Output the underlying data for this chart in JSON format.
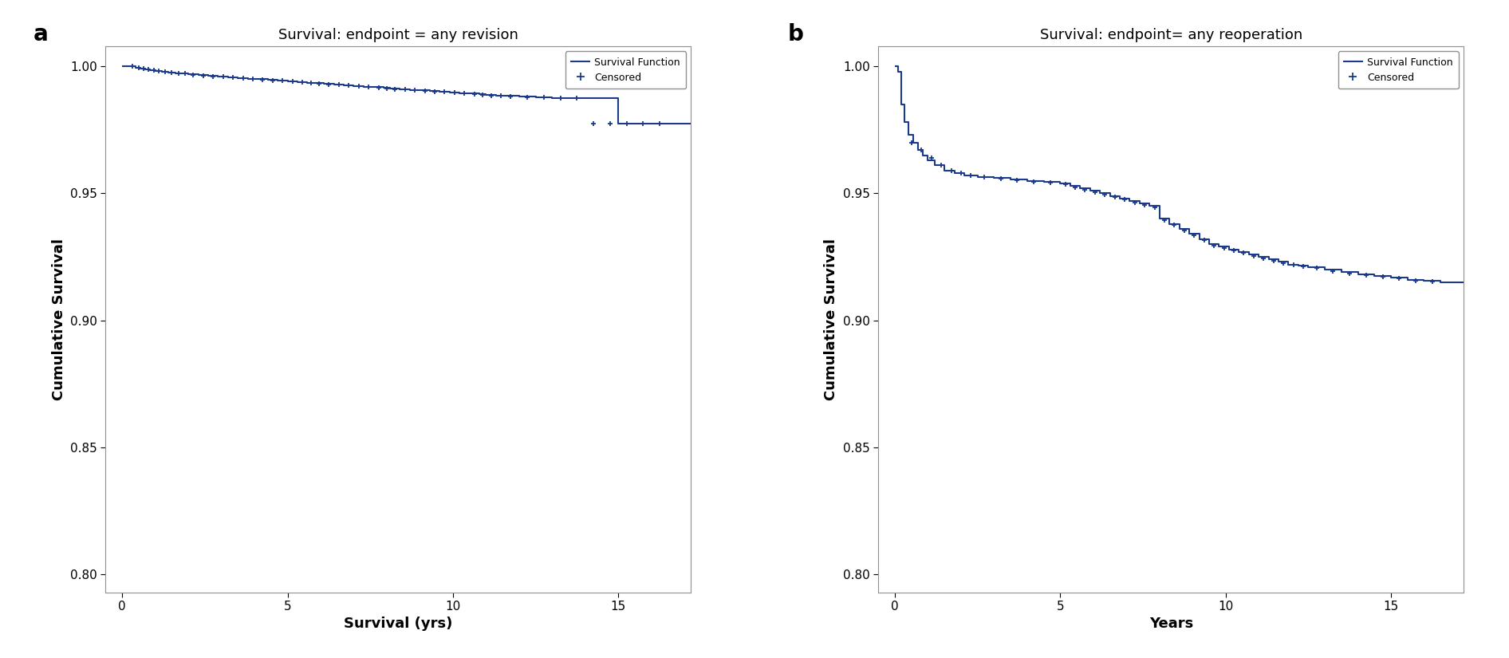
{
  "panel_a": {
    "title": "Survival: endpoint = any revision",
    "xlabel": "Survival (yrs)",
    "ylabel": "Cumulative Survival",
    "ylim": [
      0.793,
      1.008
    ],
    "xlim": [
      -0.5,
      17.2
    ],
    "yticks": [
      0.8,
      0.85,
      0.9,
      0.95,
      1.0
    ],
    "ytick_labels": [
      "0.80",
      "0.85",
      "0.90",
      "0.95",
      "1.00"
    ],
    "xticks": [
      0,
      5,
      10,
      15
    ],
    "xtick_labels": [
      "0",
      "5",
      "10",
      "15"
    ],
    "color": "#1B3A8C",
    "step_times": [
      0.0,
      0.25,
      0.4,
      0.55,
      0.7,
      0.85,
      1.0,
      1.2,
      1.4,
      1.6,
      1.8,
      2.0,
      2.3,
      2.6,
      2.9,
      3.2,
      3.5,
      3.8,
      4.1,
      4.4,
      4.7,
      5.0,
      5.3,
      5.6,
      5.8,
      6.1,
      6.4,
      6.7,
      7.0,
      7.3,
      7.6,
      7.9,
      8.1,
      8.4,
      8.7,
      9.0,
      9.3,
      9.6,
      9.9,
      10.2,
      10.5,
      10.8,
      11.0,
      11.3,
      11.6,
      12.0,
      12.5,
      13.0,
      13.5,
      14.0,
      14.5,
      15.0,
      15.5,
      16.0,
      16.5
    ],
    "step_survival": [
      1.0,
      1.0,
      0.9993,
      0.999,
      0.9987,
      0.9984,
      0.9981,
      0.9979,
      0.9976,
      0.9974,
      0.9971,
      0.9969,
      0.9966,
      0.9963,
      0.9961,
      0.9958,
      0.9955,
      0.9952,
      0.995,
      0.9947,
      0.9944,
      0.9942,
      0.9939,
      0.9936,
      0.9934,
      0.9931,
      0.9928,
      0.9926,
      0.9923,
      0.992,
      0.9918,
      0.9915,
      0.9913,
      0.991,
      0.9908,
      0.9905,
      0.9903,
      0.99,
      0.9898,
      0.9895,
      0.9893,
      0.989,
      0.9888,
      0.9885,
      0.9883,
      0.988,
      0.9878,
      0.9876,
      0.9875,
      0.9874,
      0.9874,
      0.9774,
      0.9774,
      0.9774,
      0.9774
    ],
    "censored_times": [
      0.3,
      0.5,
      0.65,
      0.8,
      0.95,
      1.1,
      1.3,
      1.5,
      1.7,
      1.9,
      2.15,
      2.45,
      2.75,
      3.05,
      3.35,
      3.65,
      3.95,
      4.25,
      4.55,
      4.85,
      5.15,
      5.45,
      5.7,
      5.95,
      6.25,
      6.55,
      6.85,
      7.15,
      7.45,
      7.75,
      8.0,
      8.25,
      8.55,
      8.85,
      9.15,
      9.45,
      9.75,
      10.05,
      10.35,
      10.65,
      10.9,
      11.15,
      11.45,
      11.75,
      12.25,
      12.75,
      13.25,
      13.75,
      14.25,
      14.75,
      15.25,
      15.75,
      16.25
    ],
    "censored_survival": [
      1.0,
      0.9993,
      0.999,
      0.9987,
      0.9984,
      0.9981,
      0.9979,
      0.9976,
      0.9974,
      0.9971,
      0.9967,
      0.9964,
      0.9961,
      0.9959,
      0.9956,
      0.9953,
      0.9951,
      0.9948,
      0.9945,
      0.9943,
      0.994,
      0.9937,
      0.9935,
      0.9932,
      0.9929,
      0.9927,
      0.9924,
      0.9921,
      0.9919,
      0.9916,
      0.9914,
      0.9911,
      0.9909,
      0.9906,
      0.9904,
      0.9901,
      0.9899,
      0.9896,
      0.9894,
      0.9891,
      0.9889,
      0.9886,
      0.9884,
      0.9881,
      0.9879,
      0.9877,
      0.9875,
      0.9874,
      0.9774,
      0.9774,
      0.9774,
      0.9774,
      0.9774
    ]
  },
  "panel_b": {
    "title": "Survival: endpoint= any reoperation",
    "xlabel": "Years",
    "ylabel": "Cumulative Survival",
    "ylim": [
      0.793,
      1.008
    ],
    "xlim": [
      -0.5,
      17.2
    ],
    "yticks": [
      0.8,
      0.85,
      0.9,
      0.95,
      1.0
    ],
    "ytick_labels": [
      "0.80",
      "0.85",
      "0.90",
      "0.95",
      "1.00"
    ],
    "xticks": [
      0,
      5,
      10,
      15
    ],
    "xtick_labels": [
      "0",
      "5",
      "10",
      "15"
    ],
    "color": "#1B3A8C",
    "step_times": [
      0.0,
      0.1,
      0.2,
      0.3,
      0.4,
      0.55,
      0.7,
      0.85,
      1.0,
      1.2,
      1.5,
      1.8,
      2.1,
      2.5,
      3.0,
      3.5,
      4.0,
      4.5,
      5.0,
      5.3,
      5.6,
      5.9,
      6.2,
      6.5,
      6.8,
      7.1,
      7.4,
      7.7,
      8.0,
      8.3,
      8.6,
      8.9,
      9.2,
      9.5,
      9.8,
      10.1,
      10.4,
      10.7,
      11.0,
      11.3,
      11.6,
      11.9,
      12.2,
      12.5,
      13.0,
      13.5,
      14.0,
      14.5,
      15.0,
      15.5,
      16.0,
      16.5
    ],
    "step_survival": [
      1.0,
      0.998,
      0.985,
      0.978,
      0.973,
      0.97,
      0.967,
      0.965,
      0.963,
      0.961,
      0.959,
      0.958,
      0.957,
      0.9565,
      0.956,
      0.9555,
      0.955,
      0.9545,
      0.954,
      0.953,
      0.952,
      0.951,
      0.95,
      0.949,
      0.948,
      0.947,
      0.946,
      0.945,
      0.94,
      0.938,
      0.936,
      0.934,
      0.932,
      0.93,
      0.929,
      0.928,
      0.927,
      0.926,
      0.925,
      0.924,
      0.923,
      0.922,
      0.9215,
      0.921,
      0.92,
      0.919,
      0.918,
      0.9175,
      0.917,
      0.916,
      0.9155,
      0.915
    ],
    "censored_times": [
      0.5,
      0.8,
      1.1,
      1.4,
      1.7,
      2.0,
      2.3,
      2.7,
      3.2,
      3.7,
      4.2,
      4.7,
      5.15,
      5.45,
      5.75,
      6.05,
      6.35,
      6.65,
      6.95,
      7.25,
      7.55,
      7.85,
      8.15,
      8.45,
      8.75,
      9.05,
      9.35,
      9.65,
      9.95,
      10.25,
      10.55,
      10.85,
      11.15,
      11.45,
      11.75,
      12.05,
      12.35,
      12.75,
      13.25,
      13.75,
      14.25,
      14.75,
      15.25,
      15.75,
      16.25
    ],
    "censored_survival": [
      0.97,
      0.967,
      0.964,
      0.961,
      0.959,
      0.958,
      0.957,
      0.9563,
      0.9558,
      0.9552,
      0.9547,
      0.9542,
      0.9535,
      0.9525,
      0.9515,
      0.9505,
      0.9495,
      0.9485,
      0.9475,
      0.9465,
      0.9455,
      0.9445,
      0.9395,
      0.9375,
      0.9355,
      0.9335,
      0.9315,
      0.9295,
      0.9285,
      0.9275,
      0.9265,
      0.9255,
      0.9245,
      0.9235,
      0.9225,
      0.9218,
      0.9213,
      0.9205,
      0.9195,
      0.9185,
      0.9178,
      0.9173,
      0.9165,
      0.9157,
      0.9152
    ]
  },
  "bg_color": "#ffffff",
  "axes_color": "#909090",
  "line_color": "#1B3A8C",
  "label_fontsize": 13,
  "tick_fontsize": 11,
  "title_fontsize": 13,
  "panel_label_fontsize": 20
}
